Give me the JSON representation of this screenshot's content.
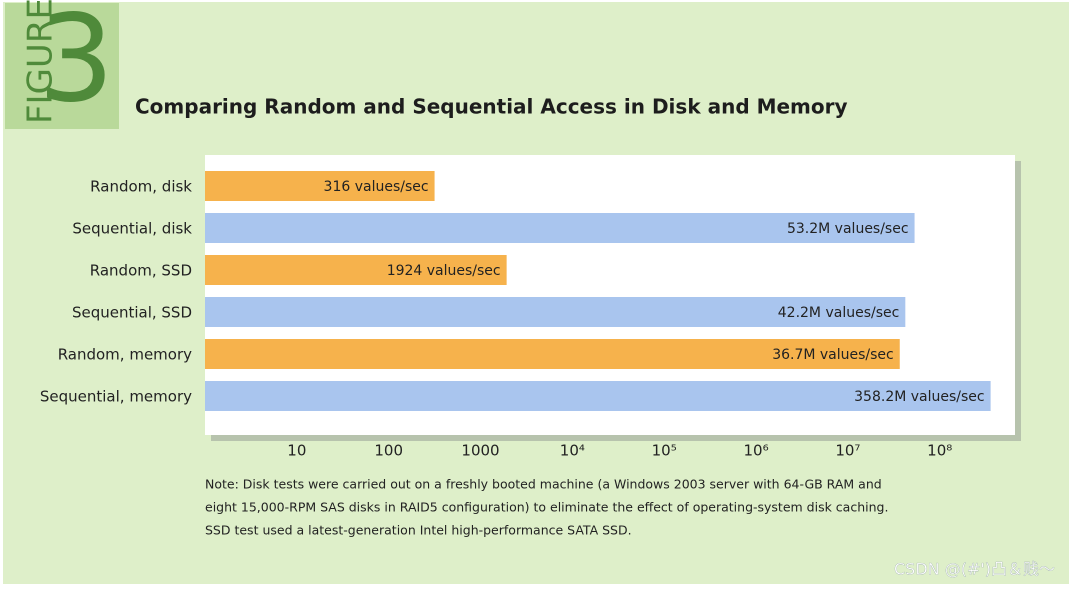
{
  "figure_label": "FIGURE",
  "figure_number": "3",
  "chart_data": {
    "type": "bar",
    "orientation": "horizontal",
    "title": "Comparing Random and Sequential Access in Disk and Memory",
    "categories": [
      "Random, disk",
      "Sequential, disk",
      "Random, SSD",
      "Sequential, SSD",
      "Random, memory",
      "Sequential, memory"
    ],
    "values": [
      316,
      53200000,
      1924,
      42200000,
      36700000,
      358200000
    ],
    "value_labels": [
      "316 values/sec",
      "53.2M values/sec",
      "1924 values/sec",
      "42.2M values/sec",
      "36.7M values/sec",
      "358.2M values/sec"
    ],
    "colors": [
      "#f6b24c",
      "#a9c5ee",
      "#f6b24c",
      "#a9c5ee",
      "#f6b24c",
      "#a9c5ee"
    ],
    "xscale": "log",
    "xlim": [
      1,
      660000000
    ],
    "xticks": [
      10,
      100,
      1000,
      {
        "value": 10000,
        "label": "10⁴"
      },
      {
        "value": 100000,
        "label": "10⁵"
      },
      {
        "value": 1000000,
        "label": "10⁶"
      },
      {
        "value": 10000000,
        "label": "10⁷"
      },
      {
        "value": 100000000,
        "label": "10⁸"
      }
    ],
    "grid": false
  },
  "note": [
    "Note: Disk tests were carried out on a freshly booted machine (a Windows 2003 server with 64-GB RAM and",
    "eight 15,000-RPM SAS disks in RAID5 configuration) to eliminate the effect of operating-system disk caching.",
    "SSD test used a latest-generation Intel high-performance SATA SSD."
  ],
  "watermark": "CSDN @(#')凸＆贱～"
}
